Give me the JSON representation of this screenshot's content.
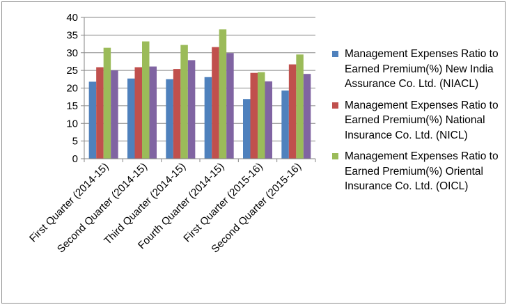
{
  "chart_data": {
    "type": "bar",
    "title": "",
    "xlabel": "",
    "ylabel": "",
    "ylim": [
      0,
      40
    ],
    "yticks": [
      0,
      5,
      10,
      15,
      20,
      25,
      30,
      35,
      40
    ],
    "grid": true,
    "legend_position": "right",
    "categories": [
      "First Quarter (2014-15)",
      "Second Quarter (2014-15)",
      "Third Quarter (2014-15)",
      "Fourth Quarter (2014-15)",
      "First Quarter (2015-16)",
      "Second Quarter (2015-16)"
    ],
    "series": [
      {
        "name": "Management Expenses Ratio to Earned Premium(%) New India Assurance Co. Ltd. (NIACL)",
        "color": "#4f81bd",
        "values": [
          21.8,
          22.7,
          22.5,
          23.1,
          16.9,
          19.3
        ]
      },
      {
        "name": "Management Expenses Ratio to Earned Premium(%) National Insurance Co. Ltd. (NICL)",
        "color": "#c0504d",
        "values": [
          25.9,
          25.9,
          25.4,
          31.6,
          24.3,
          26.7
        ]
      },
      {
        "name": "Management Expenses Ratio to Earned Premium(%) Oriental Insurance Co. Ltd. (OICL)",
        "color": "#9bbb59",
        "values": [
          31.4,
          33.2,
          32.2,
          36.6,
          24.5,
          29.5
        ]
      },
      {
        "name": "",
        "color": "#8064a2",
        "values": [
          25.0,
          26.1,
          27.9,
          29.9,
          21.9,
          24.0
        ]
      }
    ]
  }
}
